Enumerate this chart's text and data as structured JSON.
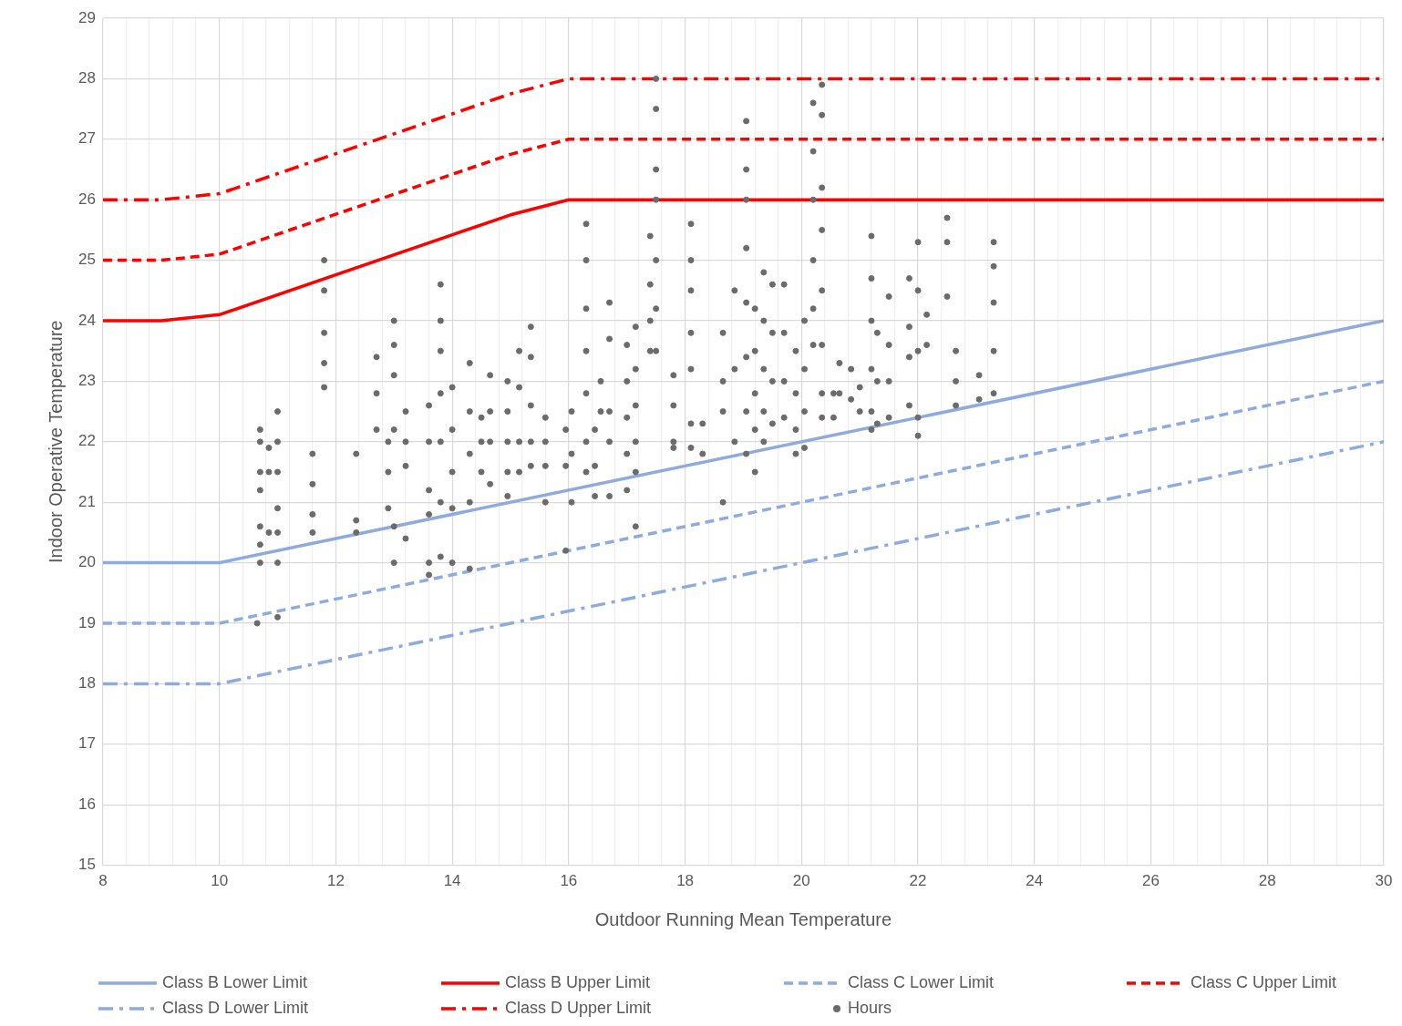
{
  "chart_data": {
    "type": "line",
    "xlabel": "Outdoor Running Mean Temperature",
    "ylabel": "Indoor Operative Temperature",
    "xlim": [
      8,
      30
    ],
    "ylim": [
      15,
      29
    ],
    "xticks": [
      8,
      {
        "value": 8.4,
        "label": null
      },
      {
        "value": 8.8,
        "label": null
      },
      {
        "value": 9.2,
        "label": null
      },
      {
        "value": 9.6,
        "label": null
      },
      10,
      {
        "value": 10.4,
        "label": null
      },
      {
        "value": 10.8,
        "label": null
      },
      {
        "value": 11.2,
        "label": null
      },
      {
        "value": 11.6,
        "label": null
      },
      12,
      {
        "value": 12.4,
        "label": null
      },
      {
        "value": 12.8,
        "label": null
      },
      {
        "value": 13.2,
        "label": null
      },
      {
        "value": 13.6,
        "label": null
      },
      14,
      {
        "value": 14.4,
        "label": null
      },
      {
        "value": 14.8,
        "label": null
      },
      {
        "value": 15.2,
        "label": null
      },
      {
        "value": 15.6,
        "label": null
      },
      16,
      {
        "value": 16.4,
        "label": null
      },
      {
        "value": 16.8,
        "label": null
      },
      {
        "value": 17.2,
        "label": null
      },
      {
        "value": 17.6,
        "label": null
      },
      18,
      {
        "value": 18.4,
        "label": null
      },
      {
        "value": 18.8,
        "label": null
      },
      {
        "value": 19.2,
        "label": null
      },
      {
        "value": 19.6,
        "label": null
      },
      20,
      {
        "value": 20.4,
        "label": null
      },
      {
        "value": 20.8,
        "label": null
      },
      {
        "value": 21.2,
        "label": null
      },
      {
        "value": 21.6,
        "label": null
      },
      22,
      {
        "value": 22.4,
        "label": null
      },
      {
        "value": 22.8,
        "label": null
      },
      {
        "value": 23.2,
        "label": null
      },
      {
        "value": 23.6,
        "label": null
      },
      24,
      {
        "value": 24.4,
        "label": null
      },
      {
        "value": 24.8,
        "label": null
      },
      {
        "value": 25.2,
        "label": null
      },
      {
        "value": 25.6,
        "label": null
      },
      26,
      {
        "value": 26.4,
        "label": null
      },
      {
        "value": 26.8,
        "label": null
      },
      {
        "value": 27.2,
        "label": null
      },
      {
        "value": 27.6,
        "label": null
      },
      28,
      {
        "value": 28.4,
        "label": null
      },
      {
        "value": 28.8,
        "label": null
      },
      {
        "value": 29.2,
        "label": null
      },
      {
        "value": 29.6,
        "label": null
      },
      30
    ],
    "yticks": [
      15,
      16,
      17,
      18,
      19,
      20,
      21,
      22,
      23,
      24,
      25,
      26,
      27,
      28,
      29
    ],
    "grid": true,
    "legend": "bottom",
    "marker": "none",
    "series": [
      {
        "name": "Class B Lower Limit",
        "color": "#8faadc",
        "line_style": "solid",
        "x": [
          8,
          10,
          30
        ],
        "values": [
          20,
          20,
          24
        ]
      },
      {
        "name": "Class B Upper Limit",
        "color": "#ff0000",
        "line_style": "solid",
        "x": [
          8,
          9,
          10,
          15,
          16,
          30
        ],
        "values": [
          24,
          24,
          24.1,
          25.75,
          26,
          26
        ]
      },
      {
        "name": "Class C Lower Limit",
        "color": "#8faadc",
        "line_style": "dashed",
        "x": [
          8,
          10,
          30
        ],
        "values": [
          19,
          19,
          23
        ]
      },
      {
        "name": "Class C Upper Limit",
        "color": "#ff0000",
        "line_style": "dashed",
        "x": [
          8,
          9,
          10,
          15,
          16,
          30
        ],
        "values": [
          25,
          25,
          25.1,
          26.75,
          27,
          27
        ]
      },
      {
        "name": "Class D Lower Limit",
        "color": "#8faadc",
        "line_style": "dashdot",
        "x": [
          8,
          10,
          30
        ],
        "values": [
          18,
          18,
          22
        ]
      },
      {
        "name": "Class D Upper Limit",
        "color": "#ff0000",
        "line_style": "dashdot",
        "x": [
          8,
          9,
          10,
          15,
          16,
          30
        ],
        "values": [
          26,
          26,
          26.1,
          27.75,
          28,
          28
        ]
      },
      {
        "name": "Hours",
        "type": "scatter",
        "color": "#6b6b6b",
        "marker": "circle",
        "x": [
          10.7,
          10.7,
          10.7,
          10.7,
          10.7,
          10.7,
          10.7,
          10.65,
          10.85,
          10.85,
          10.85,
          11,
          11,
          11,
          11,
          11,
          11,
          11,
          11.6,
          11.6,
          11.6,
          11.6,
          11.8,
          11.8,
          11.8,
          11.8,
          11.8,
          12.35,
          12.35,
          12.35,
          12.7,
          12.7,
          12.7,
          12.9,
          12.9,
          12.9,
          13,
          13,
          13,
          13,
          13,
          13,
          13.2,
          13.2,
          13.2,
          13.2,
          13.6,
          13.6,
          13.6,
          13.6,
          13.6,
          13.6,
          13.8,
          13.8,
          13.8,
          13.8,
          13.8,
          13.8,
          13.8,
          14,
          14,
          14,
          14,
          14,
          14.3,
          14.3,
          14.3,
          14.3,
          14.3,
          14.5,
          14.5,
          14.5,
          14.65,
          14.65,
          14.65,
          14.65,
          14.95,
          14.95,
          14.95,
          14.95,
          14.95,
          15.15,
          15.15,
          15.15,
          15.15,
          15.35,
          15.35,
          15.35,
          15.35,
          15.35,
          15.6,
          15.6,
          15.6,
          15.6,
          15.95,
          15.95,
          15.95,
          16.05,
          16.05,
          16.05,
          16.3,
          16.3,
          16.3,
          16.3,
          16.3,
          16.3,
          16.3,
          16.45,
          16.45,
          16.45,
          16.55,
          16.55,
          16.7,
          16.7,
          16.7,
          16.7,
          16.7,
          17,
          17,
          17,
          17,
          17,
          17.15,
          17.15,
          17.15,
          17.15,
          17.15,
          17.15,
          17.4,
          17.4,
          17.4,
          17.4,
          17.5,
          17.5,
          17.5,
          17.5,
          17.5,
          17.5,
          17.5,
          17.8,
          17.8,
          17.8,
          17.8,
          18.1,
          18.1,
          18.1,
          18.1,
          18.1,
          18.1,
          18.1,
          18.3,
          18.3,
          18.65,
          18.65,
          18.65,
          18.65,
          18.85,
          18.85,
          18.85,
          19.05,
          19.05,
          19.05,
          19.05,
          19.05,
          19.05,
          19.05,
          19.05,
          19.2,
          19.2,
          19.2,
          19.2,
          19.2,
          19.35,
          19.35,
          19.35,
          19.35,
          19.35,
          19.5,
          19.5,
          19.5,
          19.5,
          19.7,
          19.7,
          19.7,
          19.7,
          19.9,
          19.9,
          19.9,
          19.9,
          20.05,
          20.05,
          20.05,
          20.05,
          20.2,
          20.2,
          20.2,
          20.2,
          20.2,
          20.2,
          20.35,
          20.35,
          20.35,
          20.35,
          20.35,
          20.35,
          20.35,
          20.35,
          20.55,
          20.55,
          20.65,
          20.65,
          20.85,
          20.85,
          21,
          21,
          21.2,
          21.2,
          21.2,
          21.2,
          21.2,
          21.2,
          21.3,
          21.3,
          21.3,
          21.5,
          21.5,
          21.5,
          21.5,
          21.85,
          21.85,
          21.85,
          21.85,
          22,
          22,
          22,
          22,
          22,
          22.15,
          22.15,
          22.5,
          22.5,
          22.5,
          22.65,
          22.65,
          22.65,
          23.05,
          23.05,
          23.3,
          23.3,
          23.3,
          23.3,
          23.3
        ],
        "values": [
          22.2,
          22,
          21.5,
          21.2,
          20.6,
          20.3,
          20,
          19,
          21.9,
          21.5,
          20.5,
          22.5,
          22,
          21.5,
          20.9,
          20.5,
          20,
          19.1,
          21.8,
          21.3,
          20.8,
          20.5,
          25,
          24.5,
          23.8,
          23.3,
          22.9,
          21.8,
          20.7,
          20.5,
          23.4,
          22.8,
          22.2,
          22,
          21.5,
          20.9,
          24,
          23.6,
          23.1,
          22.2,
          20.6,
          20,
          22.5,
          22,
          21.6,
          20.4,
          22.6,
          22,
          21.2,
          20.8,
          20,
          19.8,
          24.6,
          24,
          23.5,
          22.8,
          22,
          21,
          20.1,
          22.9,
          22.2,
          21.5,
          20.9,
          20,
          23.3,
          22.5,
          21.8,
          21,
          19.9,
          22.4,
          22,
          21.5,
          23.1,
          22.5,
          22,
          21.3,
          23,
          22.5,
          22,
          21.5,
          21.1,
          23.5,
          22.9,
          22,
          21.5,
          23.9,
          23.4,
          22.6,
          22,
          21.6,
          22.4,
          22,
          21.6,
          21,
          22.2,
          21.6,
          20.2,
          22.5,
          21.8,
          21,
          25.6,
          25,
          24.2,
          23.5,
          22.8,
          22,
          21.5,
          22.2,
          21.6,
          21.1,
          23,
          22.5,
          24.3,
          23.7,
          22.5,
          22,
          21.1,
          23.6,
          23,
          22.4,
          21.8,
          21.2,
          23.9,
          23.2,
          22.6,
          22,
          21.5,
          20.6,
          25.4,
          24.6,
          24,
          23.5,
          28,
          27.5,
          26.5,
          26,
          25,
          24.2,
          23.5,
          23.1,
          22.6,
          22,
          21.9,
          25.6,
          25,
          24.5,
          23.8,
          23.2,
          22.3,
          21.9,
          22.3,
          21.8,
          23.8,
          23,
          22.5,
          21,
          24.5,
          23.2,
          22,
          27.3,
          26.5,
          26,
          25.2,
          24.3,
          23.4,
          22.5,
          21.8,
          24.2,
          23.5,
          22.8,
          22.2,
          21.5,
          24.8,
          24,
          23.2,
          22.5,
          22,
          24.6,
          23.8,
          23,
          22.3,
          24.6,
          23.8,
          23,
          22.4,
          23.5,
          22.8,
          22.2,
          21.8,
          24,
          23.2,
          22.5,
          21.9,
          27.6,
          26.8,
          26,
          25,
          24.2,
          23.6,
          27.9,
          27.4,
          26.2,
          25.5,
          24.5,
          23.6,
          22.8,
          22.4,
          22.8,
          22.4,
          23.3,
          22.8,
          23.2,
          22.7,
          22.9,
          22.5,
          25.4,
          24.7,
          24,
          23.2,
          22.5,
          22.2,
          23.8,
          23,
          22.3,
          24.4,
          23.6,
          23,
          22.4,
          24.7,
          23.9,
          23.4,
          22.6,
          25.3,
          24.5,
          23.5,
          22.4,
          22.1,
          24.1,
          23.6,
          25.7,
          25.3,
          24.4,
          23.5,
          23,
          22.6,
          23.1,
          22.7,
          25.3,
          24.9,
          24.3,
          23.5,
          22.8
        ]
      }
    ]
  }
}
